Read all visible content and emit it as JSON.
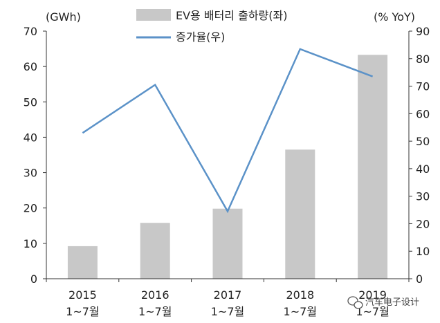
{
  "chart_data": {
    "type": "bar",
    "categories": [
      "2015\n1~7월",
      "2016\n1~7월",
      "2017\n1~7월",
      "2018\n1~7월",
      "2019\n1~7월"
    ],
    "series": [
      {
        "name": "EV용 배터리 출하량(좌)",
        "type": "bar",
        "axis": "left",
        "color": "#c8c8c8",
        "values": [
          9.2,
          15.8,
          19.8,
          36.5,
          63.3
        ]
      },
      {
        "name": "증가율(우)",
        "type": "line",
        "axis": "right",
        "color": "#5b92c8",
        "values": [
          53.0,
          70.5,
          24.5,
          83.5,
          73.5
        ]
      }
    ],
    "left_axis": {
      "unit_label": "(GWh)",
      "ylim": [
        0,
        70
      ],
      "ticks": [
        0,
        10,
        20,
        30,
        40,
        50,
        60,
        70
      ]
    },
    "right_axis": {
      "unit_label": "(% YoY)",
      "ylim": [
        0,
        90
      ],
      "ticks": [
        0,
        10,
        20,
        30,
        40,
        50,
        60,
        70,
        80,
        90
      ]
    },
    "legend": "top-center"
  },
  "watermark": {
    "text": "汽车电子设计",
    "icon": "wechat-icon"
  }
}
